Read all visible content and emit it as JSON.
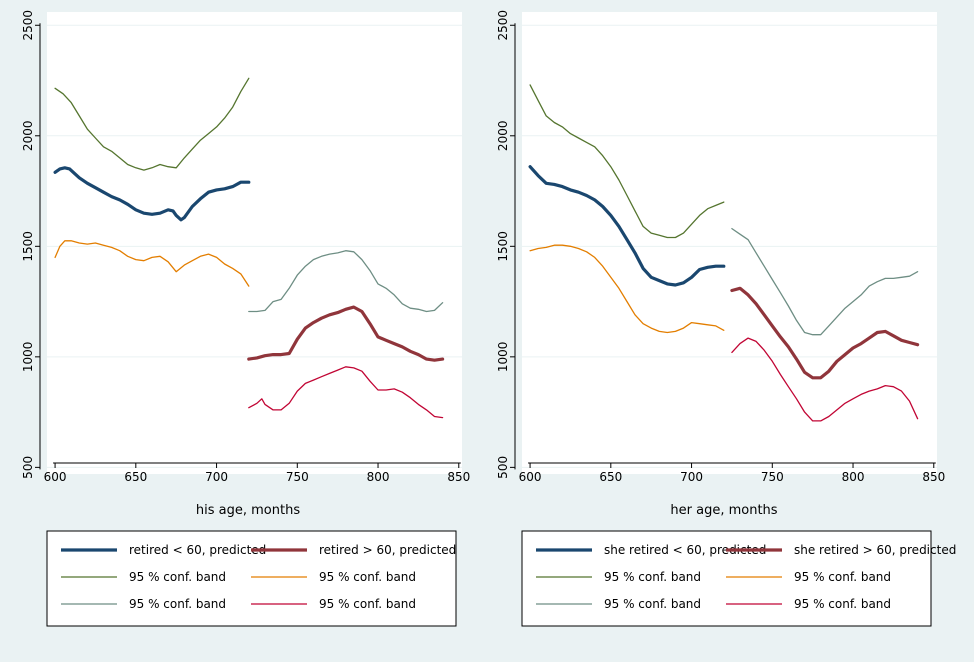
{
  "colors": {
    "background": "#eaf2f3",
    "plot_area": "#ffffff",
    "grid": "#eaf2f3",
    "navy": "#1a476f",
    "maroon": "#90353b",
    "olive": "#55752f",
    "orange": "#e37e00",
    "teal": "#6e8e84",
    "crimson": "#c10534"
  },
  "chart_data": [
    {
      "type": "line",
      "xlabel": "his age, months",
      "ylabel": "",
      "xlim": [
        595,
        852
      ],
      "ylim": [
        470,
        2560
      ],
      "xticks": [
        600,
        650,
        700,
        750,
        800,
        850
      ],
      "yticks": [
        500,
        1000,
        1500,
        2000,
        2500
      ],
      "grid": true,
      "legend_position": "bottom",
      "legend_order": [
        0,
        3,
        1,
        4,
        2,
        5
      ],
      "series": [
        {
          "name": "retired < 60, predicted",
          "color": "#1a476f",
          "width": 3.2,
          "x": [
            600,
            603,
            606,
            609,
            612,
            615,
            620,
            625,
            630,
            635,
            640,
            645,
            650,
            655,
            660,
            665,
            670,
            673,
            675,
            678,
            680,
            685,
            690,
            695,
            700,
            705,
            710,
            715,
            720
          ],
          "y": [
            1835,
            1850,
            1855,
            1850,
            1830,
            1810,
            1785,
            1765,
            1745,
            1725,
            1710,
            1690,
            1665,
            1650,
            1645,
            1650,
            1665,
            1660,
            1640,
            1620,
            1630,
            1680,
            1715,
            1745,
            1755,
            1760,
            1770,
            1790,
            1790
          ]
        },
        {
          "name": "95 % conf. band",
          "color": "#55752f",
          "width": 1.3,
          "x": [
            600,
            605,
            610,
            615,
            620,
            625,
            630,
            635,
            640,
            645,
            650,
            655,
            660,
            665,
            670,
            675,
            680,
            685,
            690,
            695,
            700,
            705,
            710,
            715,
            720
          ],
          "y": [
            2215,
            2190,
            2150,
            2090,
            2030,
            1990,
            1950,
            1930,
            1900,
            1870,
            1855,
            1845,
            1855,
            1870,
            1860,
            1855,
            1900,
            1940,
            1980,
            2010,
            2040,
            2080,
            2130,
            2200,
            2260
          ]
        },
        {
          "name": "95 % conf. band",
          "color": "#6e8e84",
          "width": 1.3,
          "x": [
            720,
            725,
            730,
            735,
            740,
            745,
            750,
            755,
            760,
            765,
            770,
            775,
            780,
            785,
            790,
            795,
            800,
            805,
            810,
            815,
            820,
            825,
            830,
            835,
            840
          ],
          "y": [
            1205,
            1205,
            1210,
            1250,
            1260,
            1310,
            1370,
            1410,
            1440,
            1455,
            1465,
            1470,
            1480,
            1475,
            1440,
            1390,
            1330,
            1310,
            1280,
            1240,
            1220,
            1215,
            1205,
            1210,
            1245
          ]
        },
        {
          "name": "retired > 60, predicted",
          "color": "#90353b",
          "width": 3.2,
          "x": [
            720,
            725,
            730,
            735,
            740,
            745,
            750,
            755,
            760,
            765,
            770,
            775,
            780,
            785,
            790,
            795,
            800,
            805,
            810,
            815,
            820,
            825,
            830,
            835,
            840
          ],
          "y": [
            990,
            995,
            1005,
            1010,
            1010,
            1015,
            1080,
            1130,
            1155,
            1175,
            1190,
            1200,
            1215,
            1225,
            1205,
            1150,
            1090,
            1075,
            1060,
            1045,
            1025,
            1010,
            990,
            985,
            990
          ]
        },
        {
          "name": "95 % conf. band",
          "color": "#e37e00",
          "width": 1.3,
          "x": [
            600,
            603,
            606,
            610,
            615,
            620,
            625,
            630,
            635,
            640,
            645,
            650,
            655,
            660,
            665,
            670,
            675,
            680,
            685,
            690,
            695,
            700,
            705,
            710,
            715,
            720
          ],
          "y": [
            1450,
            1500,
            1525,
            1525,
            1515,
            1510,
            1515,
            1505,
            1495,
            1480,
            1455,
            1440,
            1435,
            1450,
            1455,
            1430,
            1385,
            1415,
            1435,
            1455,
            1465,
            1450,
            1420,
            1400,
            1375,
            1320
          ]
        },
        {
          "name": "95 % conf. band",
          "color": "#c10534",
          "width": 1.3,
          "x": [
            720,
            725,
            728,
            730,
            735,
            740,
            745,
            750,
            755,
            760,
            765,
            770,
            775,
            780,
            785,
            790,
            795,
            800,
            805,
            810,
            815,
            820,
            825,
            830,
            835,
            840
          ],
          "y": [
            770,
            790,
            810,
            785,
            760,
            760,
            790,
            845,
            880,
            895,
            910,
            925,
            940,
            955,
            950,
            935,
            890,
            850,
            850,
            855,
            840,
            815,
            785,
            760,
            730,
            725
          ]
        }
      ]
    },
    {
      "type": "line",
      "xlabel": "her age, months",
      "ylabel": "",
      "xlim": [
        595,
        852
      ],
      "ylim": [
        470,
        2560
      ],
      "xticks": [
        600,
        650,
        700,
        750,
        800,
        850
      ],
      "yticks": [
        500,
        1000,
        1500,
        2000,
        2500
      ],
      "grid": true,
      "legend_position": "bottom",
      "legend_order": [
        0,
        3,
        1,
        4,
        2,
        5
      ],
      "series": [
        {
          "name": "she retired < 60, predicted",
          "color": "#1a476f",
          "width": 3.2,
          "x": [
            600,
            605,
            610,
            615,
            620,
            625,
            630,
            635,
            640,
            645,
            650,
            655,
            660,
            665,
            670,
            675,
            680,
            685,
            690,
            695,
            700,
            705,
            710,
            715,
            720
          ],
          "y": [
            1860,
            1820,
            1785,
            1780,
            1770,
            1755,
            1745,
            1730,
            1710,
            1680,
            1640,
            1590,
            1530,
            1470,
            1400,
            1360,
            1345,
            1330,
            1325,
            1335,
            1360,
            1395,
            1405,
            1410,
            1410
          ]
        },
        {
          "name": "95 % conf. band",
          "color": "#55752f",
          "width": 1.3,
          "x": [
            600,
            605,
            610,
            615,
            620,
            625,
            630,
            635,
            640,
            645,
            650,
            655,
            660,
            665,
            670,
            675,
            680,
            685,
            690,
            695,
            700,
            705,
            710,
            715,
            720
          ],
          "y": [
            2230,
            2160,
            2090,
            2060,
            2040,
            2010,
            1990,
            1970,
            1950,
            1910,
            1860,
            1800,
            1730,
            1660,
            1590,
            1560,
            1550,
            1540,
            1540,
            1560,
            1600,
            1640,
            1670,
            1685,
            1700
          ]
        },
        {
          "name": "95 % conf. band",
          "color": "#6e8e84",
          "width": 1.3,
          "x": [
            725,
            730,
            735,
            740,
            745,
            750,
            755,
            760,
            765,
            770,
            775,
            780,
            785,
            790,
            795,
            800,
            805,
            810,
            815,
            820,
            825,
            830,
            835,
            840
          ],
          "y": [
            1580,
            1555,
            1530,
            1470,
            1410,
            1350,
            1290,
            1230,
            1165,
            1110,
            1100,
            1100,
            1140,
            1180,
            1220,
            1250,
            1280,
            1320,
            1340,
            1355,
            1355,
            1360,
            1365,
            1385
          ]
        },
        {
          "name": "she retired > 60, predicted",
          "color": "#90353b",
          "width": 3.2,
          "x": [
            725,
            730,
            735,
            740,
            745,
            750,
            755,
            760,
            765,
            770,
            775,
            780,
            785,
            790,
            795,
            800,
            805,
            810,
            815,
            820,
            825,
            830,
            835,
            840
          ],
          "y": [
            1300,
            1310,
            1280,
            1240,
            1190,
            1140,
            1090,
            1045,
            990,
            930,
            905,
            905,
            935,
            980,
            1010,
            1040,
            1060,
            1085,
            1110,
            1115,
            1095,
            1075,
            1065,
            1055
          ]
        },
        {
          "name": "95 % conf. band",
          "color": "#e37e00",
          "width": 1.3,
          "x": [
            600,
            605,
            610,
            615,
            620,
            625,
            630,
            635,
            640,
            645,
            650,
            655,
            660,
            665,
            670,
            675,
            680,
            685,
            690,
            695,
            700,
            705,
            710,
            715,
            720
          ],
          "y": [
            1480,
            1490,
            1495,
            1505,
            1505,
            1500,
            1490,
            1475,
            1450,
            1410,
            1360,
            1310,
            1250,
            1190,
            1150,
            1130,
            1115,
            1110,
            1115,
            1130,
            1155,
            1150,
            1145,
            1140,
            1120
          ]
        },
        {
          "name": "95 % conf. band",
          "color": "#c10534",
          "width": 1.3,
          "x": [
            725,
            730,
            735,
            740,
            745,
            750,
            755,
            760,
            765,
            770,
            775,
            780,
            785,
            790,
            795,
            800,
            805,
            810,
            815,
            820,
            825,
            830,
            835,
            840
          ],
          "y": [
            1020,
            1060,
            1085,
            1070,
            1030,
            980,
            920,
            865,
            810,
            750,
            710,
            710,
            730,
            760,
            790,
            810,
            830,
            845,
            855,
            870,
            865,
            845,
            800,
            720
          ]
        }
      ]
    }
  ]
}
